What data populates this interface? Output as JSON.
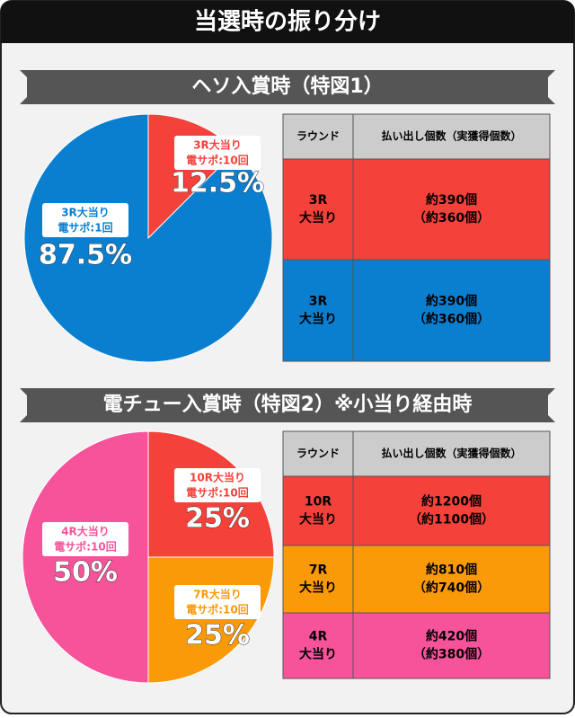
{
  "title": "当選時の振り分け",
  "chart_data": [
    {
      "type": "pie",
      "title": "ヘソ入賞時（特図1）",
      "categories": [
        "3R大当り",
        "3R大当り"
      ],
      "details": [
        "電サポ:10回",
        "電サポ:1回"
      ],
      "values": [
        12.5,
        87.5
      ],
      "value_labels": [
        "12.5%",
        "87.5%"
      ],
      "colors": [
        "#f4413a",
        "#0a7fd0"
      ]
    },
    {
      "type": "pie",
      "title": "電チュー入賞時（特図2）※小当り経由時",
      "categories": [
        "10R大当り",
        "7R大当り",
        "4R大当り"
      ],
      "details": [
        "電サポ:10回",
        "電サポ:10回",
        "電サポ:10回"
      ],
      "values": [
        25,
        25,
        50
      ],
      "value_labels": [
        "25%",
        "25%",
        "50%"
      ],
      "colors": [
        "#f4413a",
        "#fb9a08",
        "#f7539b"
      ]
    }
  ],
  "tables": [
    {
      "header": [
        "ラウンド",
        "払い出し個数（実獲得個数）"
      ],
      "rows": [
        {
          "round": [
            "3R",
            "大当り"
          ],
          "payout": [
            "約390個",
            "（約360個）"
          ],
          "color": "#f4413a"
        },
        {
          "round": [
            "3R",
            "大当り"
          ],
          "payout": [
            "約390個",
            "（約360個）"
          ],
          "color": "#0a7fd0"
        }
      ]
    },
    {
      "header": [
        "ラウンド",
        "払い出し個数（実獲得個数）"
      ],
      "rows": [
        {
          "round": [
            "10R",
            "大当り"
          ],
          "payout": [
            "約1200個",
            "（約1100個）"
          ],
          "color": "#f4413a"
        },
        {
          "round": [
            "7R",
            "大当り"
          ],
          "payout": [
            "約810個",
            "（約740個）"
          ],
          "color": "#fb9a08"
        },
        {
          "round": [
            "4R",
            "大当り"
          ],
          "payout": [
            "約420個",
            "（約380個）"
          ],
          "color": "#f7539b"
        }
      ]
    }
  ]
}
